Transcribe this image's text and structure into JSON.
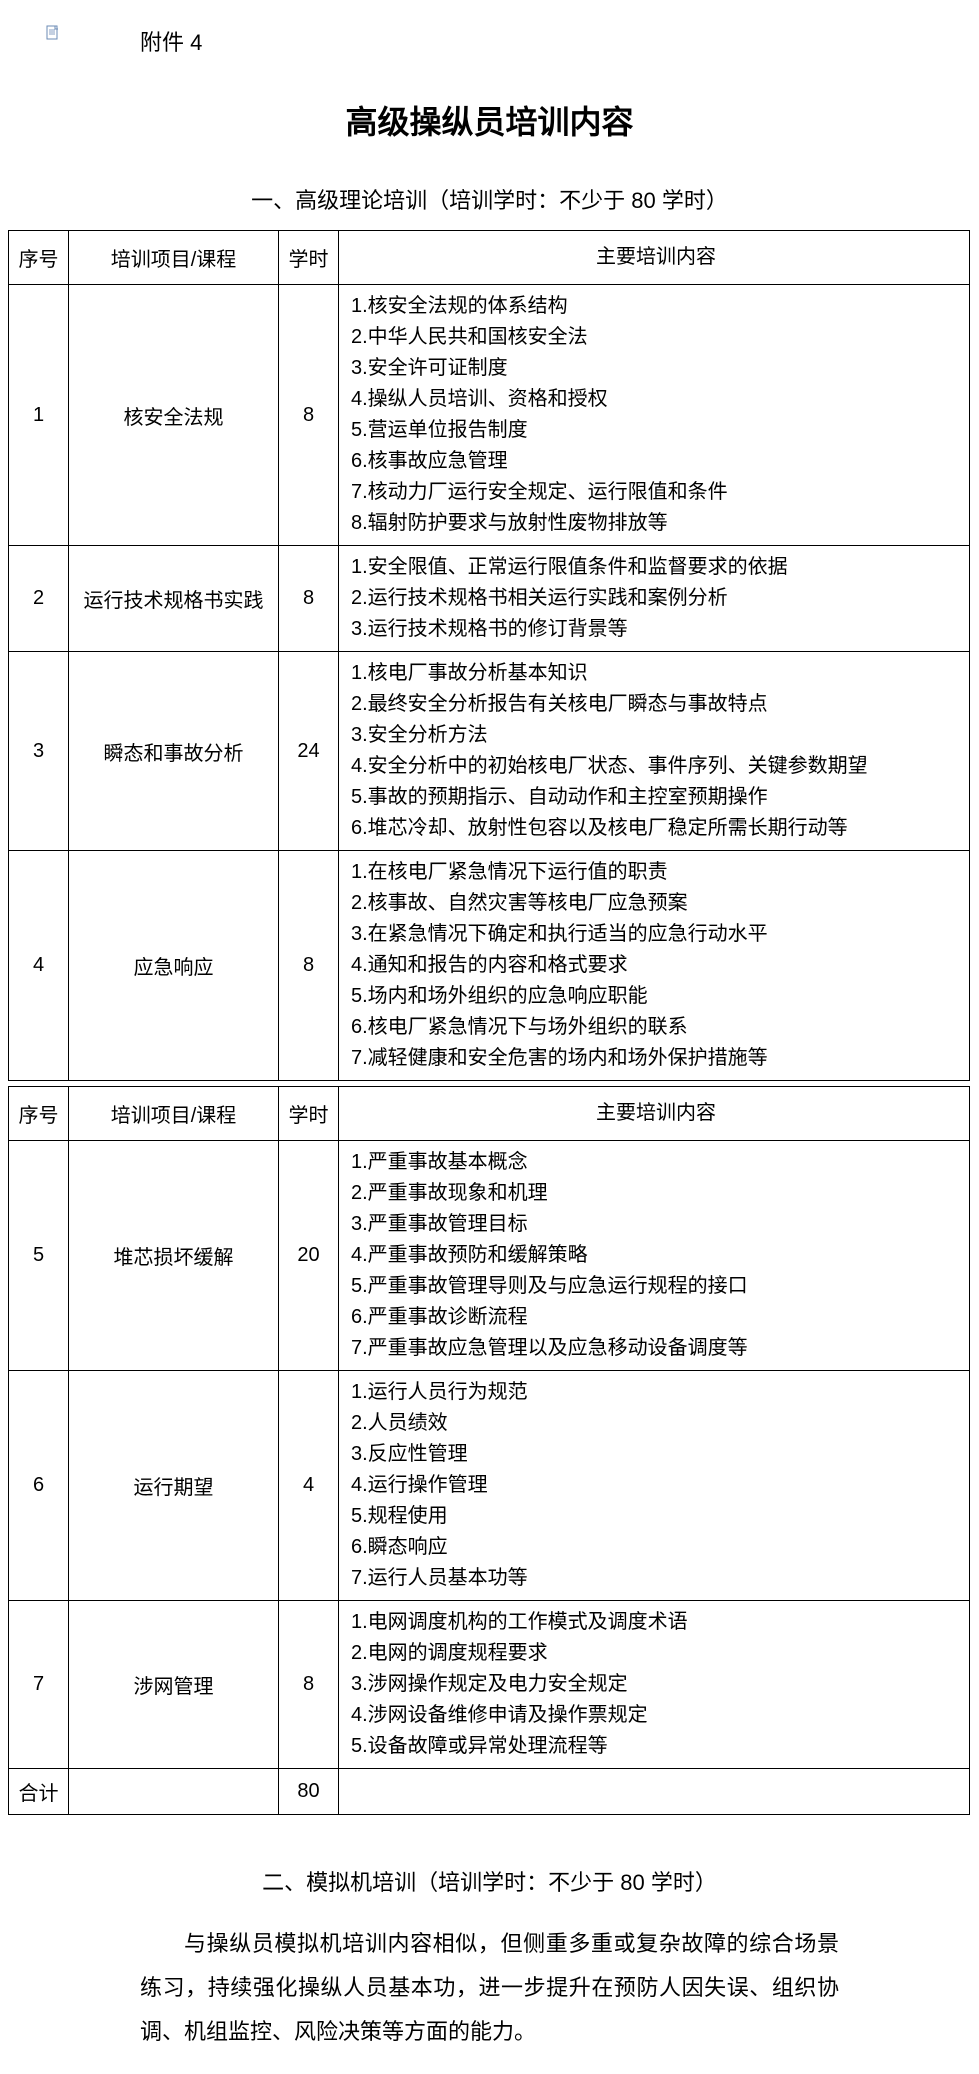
{
  "attachment_label": "附件 4",
  "main_title": "高级操纵员培训内容",
  "section1_title": "一、高级理论培训（培训学时：不少于 80 学时）",
  "headers": {
    "seq": "序号",
    "course": "培训项目/课程",
    "hours": "学时",
    "content": "主要培训内容"
  },
  "table1_rows": [
    {
      "seq": "1",
      "course": "核安全法规",
      "hours": "8",
      "content": "1.核安全法规的体系结构\n2.中华人民共和国核安全法\n3.安全许可证制度\n4.操纵人员培训、资格和授权\n5.营运单位报告制度\n6.核事故应急管理\n7.核动力厂运行安全规定、运行限值和条件\n8.辐射防护要求与放射性废物排放等"
    },
    {
      "seq": "2",
      "course": "运行技术规格书实践",
      "hours": "8",
      "content": "1.安全限值、正常运行限值条件和监督要求的依据\n2.运行技术规格书相关运行实践和案例分析\n3.运行技术规格书的修订背景等"
    },
    {
      "seq": "3",
      "course": "瞬态和事故分析",
      "hours": "24",
      "content": "1.核电厂事故分析基本知识\n2.最终安全分析报告有关核电厂瞬态与事故特点\n3.安全分析方法\n4.安全分析中的初始核电厂状态、事件序列、关键参数期望\n5.事故的预期指示、自动动作和主控室预期操作\n6.堆芯冷却、放射性包容以及核电厂稳定所需长期行动等"
    },
    {
      "seq": "4",
      "course": "应急响应",
      "hours": "8",
      "content": "1.在核电厂紧急情况下运行值的职责\n2.核事故、自然灾害等核电厂应急预案\n3.在紧急情况下确定和执行适当的应急行动水平\n4.通知和报告的内容和格式要求\n5.场内和场外组织的应急响应职能\n6.核电厂紧急情况下与场外组织的联系\n7.减轻健康和安全危害的场内和场外保护措施等"
    }
  ],
  "table2_rows": [
    {
      "seq": "5",
      "course": "堆芯损坏缓解",
      "hours": "20",
      "content": "1.严重事故基本概念\n2.严重事故现象和机理\n3.严重事故管理目标\n4.严重事故预防和缓解策略\n5.严重事故管理导则及与应急运行规程的接口\n6.严重事故诊断流程\n7.严重事故应急管理以及应急移动设备调度等"
    },
    {
      "seq": "6",
      "course": "运行期望",
      "hours": "4",
      "content": "1.运行人员行为规范\n2.人员绩效\n3.反应性管理\n4.运行操作管理\n5.规程使用\n6.瞬态响应\n7.运行人员基本功等"
    },
    {
      "seq": "7",
      "course": "涉网管理",
      "hours": "8",
      "content": "1.电网调度机构的工作模式及调度术语\n2.电网的调度规程要求\n3.涉网操作规定及电力安全规定\n4.涉网设备维修申请及操作票规定\n5.设备故障或异常处理流程等"
    }
  ],
  "total_row": {
    "seq": "合计",
    "course": "",
    "hours": "80",
    "content": ""
  },
  "section2_title": "二、模拟机培训（培训学时：不少于 80 学时）",
  "section2_text": "与操纵员模拟机培训内容相似，但侧重多重或复杂故障的综合场景练习，持续强化操纵人员基本功，进一步提升在预防人因失误、组织协调、机组监控、风险决策等方面的能力。"
}
